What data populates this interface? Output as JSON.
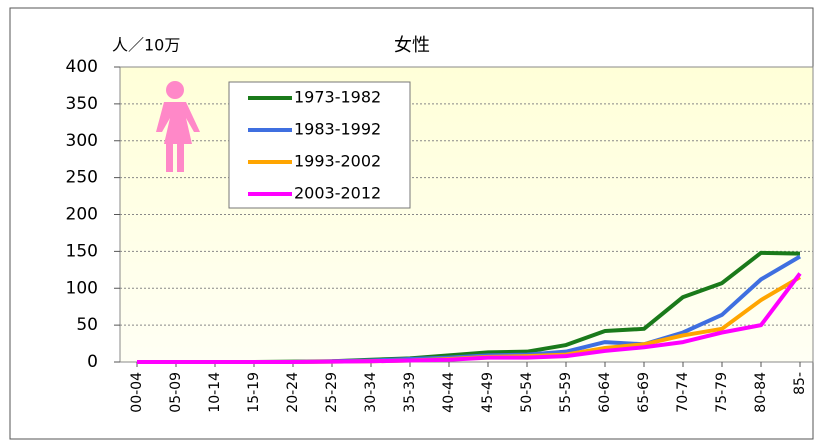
{
  "chart_data": {
    "type": "line",
    "title": "女性",
    "y_label": "人／10万",
    "categories": [
      "00-04",
      "05-09",
      "10-14",
      "15-19",
      "20-24",
      "25-29",
      "30-34",
      "35-39",
      "40-44",
      "45-49",
      "50-54",
      "55-59",
      "60-64",
      "65-69",
      "70-74",
      "75-79",
      "80-84",
      "85-"
    ],
    "series": [
      {
        "name": "1973-1982",
        "color": "#1a7a1a",
        "values": [
          0,
          0,
          0,
          0,
          0.5,
          1,
          3,
          5,
          9,
          13,
          14,
          23,
          42,
          45,
          88,
          107,
          148,
          147
        ]
      },
      {
        "name": "1983-1992",
        "color": "#3f6fe0",
        "values": [
          0,
          0,
          0,
          0,
          0,
          1,
          2,
          4,
          6,
          9,
          10,
          14,
          27,
          24,
          40,
          64,
          112,
          143
        ]
      },
      {
        "name": "1993-2002",
        "color": "#ffa500",
        "values": [
          0,
          0,
          0,
          0,
          0,
          0.5,
          1,
          2,
          4,
          7,
          8,
          10,
          19,
          24,
          36,
          45,
          84,
          115
        ]
      },
      {
        "name": "2003-2012",
        "color": "#ff00ff",
        "values": [
          0,
          0,
          0,
          0,
          0,
          0.5,
          1,
          2,
          3,
          6,
          6,
          8,
          15,
          20,
          27,
          40,
          50,
          120
        ]
      }
    ],
    "ylim": [
      0,
      400
    ],
    "yticks": [
      0,
      50,
      100,
      150,
      200,
      250,
      300,
      350,
      400
    ],
    "grid": true
  }
}
